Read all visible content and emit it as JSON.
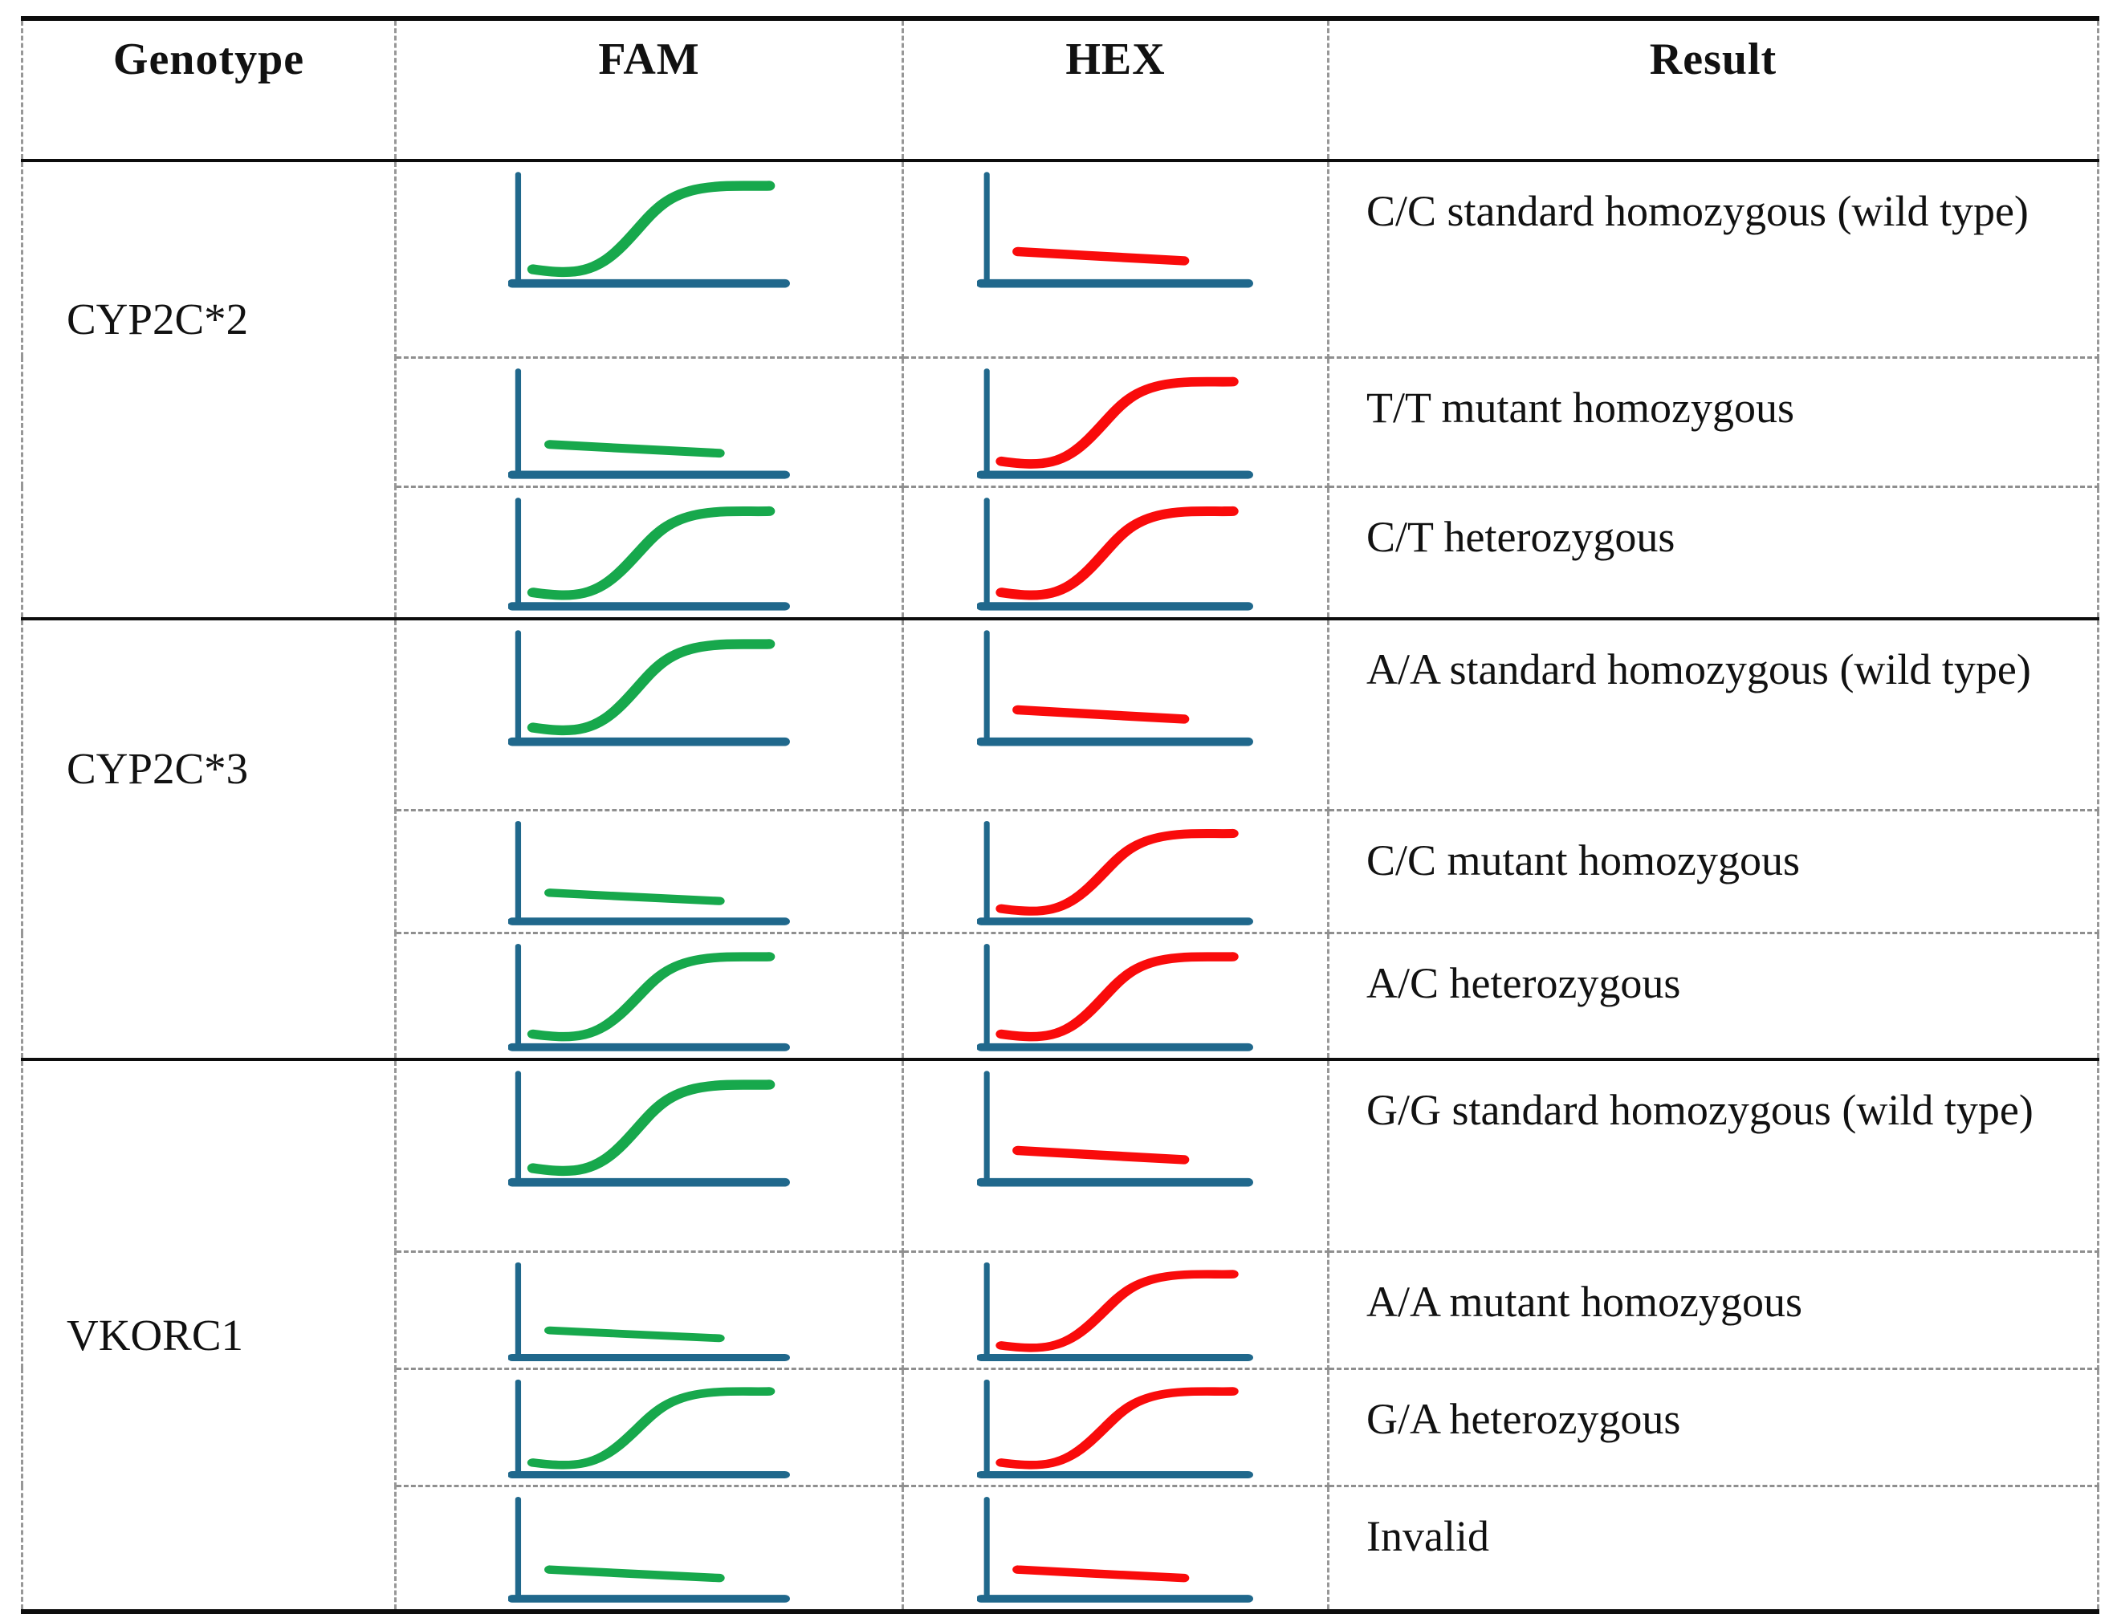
{
  "table": {
    "headers": {
      "genotype": "Genotype",
      "fam": "FAM",
      "hex": "HEX",
      "result": "Result"
    },
    "groups": [
      {
        "genotype": "CYP2C*2",
        "rows": [
          {
            "fam": "sigmoid",
            "hex": "flat",
            "result": "C/C standard homozygous (wild type)"
          },
          {
            "fam": "flat",
            "hex": "sigmoid",
            "result": "T/T mutant homozygous"
          },
          {
            "fam": "sigmoid",
            "hex": "sigmoid",
            "result": "C/T heterozygous"
          }
        ]
      },
      {
        "genotype": "CYP2C*3",
        "rows": [
          {
            "fam": "sigmoid",
            "hex": "flat",
            "result": "A/A standard homozygous (wild type)"
          },
          {
            "fam": "flat",
            "hex": "sigmoid",
            "result": "C/C mutant homozygous"
          },
          {
            "fam": "sigmoid",
            "hex": "sigmoid",
            "result": "A/C heterozygous"
          }
        ]
      },
      {
        "genotype": "VKORC1",
        "rows": [
          {
            "fam": "sigmoid",
            "hex": "flat",
            "result": "G/G standard homozygous (wild type)"
          },
          {
            "fam": "flat",
            "hex": "sigmoid",
            "result": "A/A mutant homozygous"
          },
          {
            "fam": "sigmoid",
            "hex": "sigmoid",
            "result": "G/A heterozygous"
          },
          {
            "fam": "flat",
            "hex": "flat",
            "result": "Invalid"
          }
        ]
      }
    ]
  },
  "colors": {
    "fam_curve": "#17a84c",
    "hex_curve": "#f90b0b",
    "axis": "#20688c",
    "dashed_line": "#979797",
    "solid_line": "#0d0d0d"
  }
}
